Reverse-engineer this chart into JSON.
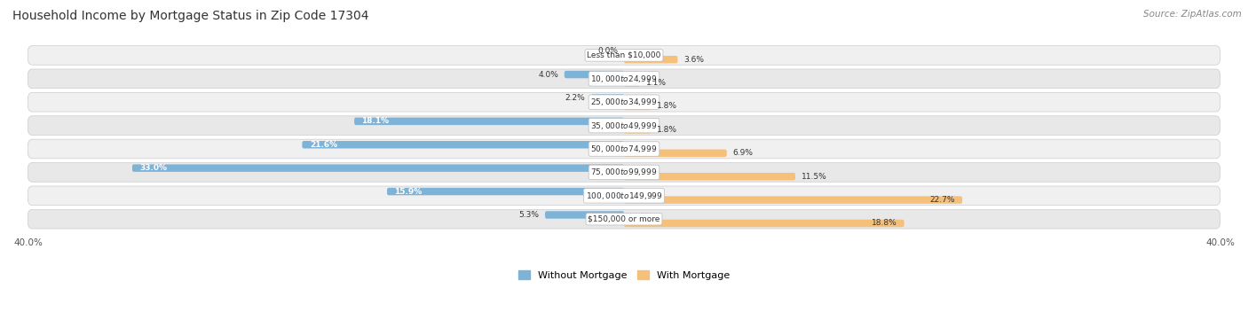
{
  "title": "Household Income by Mortgage Status in Zip Code 17304",
  "source": "Source: ZipAtlas.com",
  "categories": [
    "Less than $10,000",
    "$10,000 to $24,999",
    "$25,000 to $34,999",
    "$35,000 to $49,999",
    "$50,000 to $74,999",
    "$75,000 to $99,999",
    "$100,000 to $149,999",
    "$150,000 or more"
  ],
  "without_mortgage": [
    0.0,
    4.0,
    2.2,
    18.1,
    21.6,
    33.0,
    15.9,
    5.3
  ],
  "with_mortgage": [
    3.6,
    1.1,
    1.8,
    1.8,
    6.9,
    11.5,
    22.7,
    18.8
  ],
  "axis_max": 40.0,
  "color_without": "#7eb3d8",
  "color_with": "#f5c07a",
  "title_fontsize": 10,
  "source_fontsize": 7.5,
  "label_fontsize": 6.5,
  "bar_value_fontsize": 6.5,
  "axis_label_fontsize": 7.5,
  "legend_fontsize": 8
}
